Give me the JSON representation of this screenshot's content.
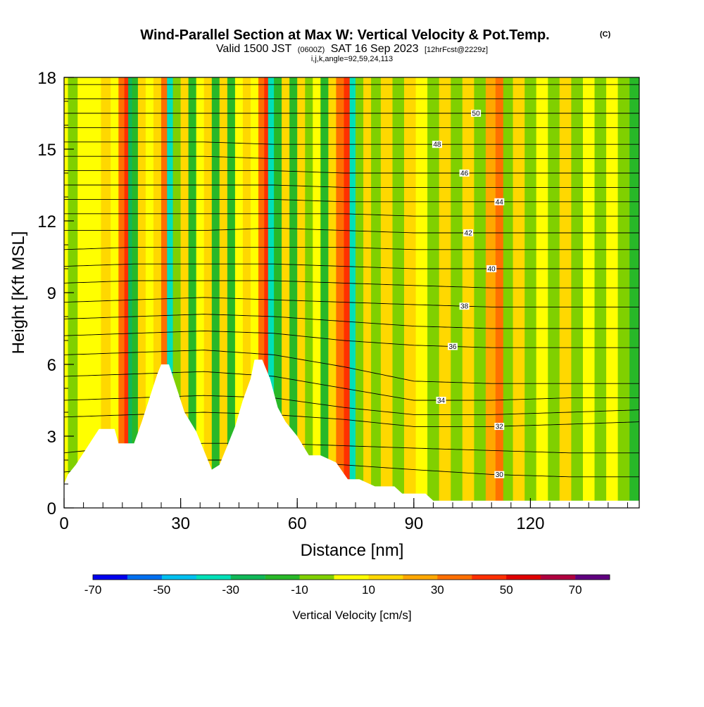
{
  "title": {
    "main": "Wind-Parallel Section at Max W: Vertical Velocity & Pot.Temp.",
    "corner": "(C)",
    "valid_prefix": "Valid 1500 JST",
    "valid_utc": "(0600Z)",
    "valid_date": "SAT 16 Sep 2023",
    "forecast": "[12hrFcst@2229z]",
    "params": "i,j,k,angle=92,59,24,113"
  },
  "chart_data": {
    "type": "heatmap",
    "xlabel": "Distance [nm]",
    "ylabel": "Height [Kft MSL]",
    "xlim": [
      0,
      148
    ],
    "ylim": [
      0,
      18
    ],
    "x_ticks": [
      0,
      30,
      60,
      90,
      120
    ],
    "y_ticks": [
      0,
      3,
      6,
      9,
      12,
      15,
      18
    ],
    "colorbar": {
      "label": "Vertical Velocity [cm/s]",
      "range": [
        -70,
        80
      ],
      "tick_values": [
        -70,
        -50,
        -30,
        -10,
        10,
        30,
        50,
        70
      ],
      "colors": [
        "#0000ee",
        "#0070f0",
        "#00c0f0",
        "#00e0b8",
        "#10b858",
        "#28b828",
        "#80d000",
        "#ffff00",
        "#ffd800",
        "#ffa800",
        "#ff7000",
        "#ff3000",
        "#e00000",
        "#b00040",
        "#600080"
      ]
    },
    "velocity_columns": [
      {
        "x": 0,
        "v": 5
      },
      {
        "x": 2,
        "v": -10
      },
      {
        "x": 5,
        "v": 5
      },
      {
        "x": 8,
        "v": 0
      },
      {
        "x": 11,
        "v": 15
      },
      {
        "x": 13,
        "v": 5
      },
      {
        "x": 15,
        "v": 35
      },
      {
        "x": 16,
        "v": 45
      },
      {
        "x": 17,
        "v": -30
      },
      {
        "x": 18,
        "v": -15
      },
      {
        "x": 20,
        "v": 10
      },
      {
        "x": 22,
        "v": 0
      },
      {
        "x": 24,
        "v": 15
      },
      {
        "x": 26,
        "v": 30
      },
      {
        "x": 27,
        "v": -35
      },
      {
        "x": 29,
        "v": -10
      },
      {
        "x": 31,
        "v": 10
      },
      {
        "x": 33,
        "v": -20
      },
      {
        "x": 35,
        "v": 5
      },
      {
        "x": 37,
        "v": 15
      },
      {
        "x": 39,
        "v": -15
      },
      {
        "x": 41,
        "v": 10
      },
      {
        "x": 43,
        "v": -15
      },
      {
        "x": 45,
        "v": 0
      },
      {
        "x": 47,
        "v": 15
      },
      {
        "x": 49,
        "v": 0
      },
      {
        "x": 51,
        "v": 30
      },
      {
        "x": 52,
        "v": 45
      },
      {
        "x": 53,
        "v": -40
      },
      {
        "x": 55,
        "v": -15
      },
      {
        "x": 57,
        "v": 10
      },
      {
        "x": 59,
        "v": -15
      },
      {
        "x": 61,
        "v": 10
      },
      {
        "x": 63,
        "v": -10
      },
      {
        "x": 65,
        "v": 5
      },
      {
        "x": 67,
        "v": -20
      },
      {
        "x": 69,
        "v": 15
      },
      {
        "x": 71,
        "v": 35
      },
      {
        "x": 73,
        "v": 40
      },
      {
        "x": 74,
        "v": -35
      },
      {
        "x": 76,
        "v": -10
      },
      {
        "x": 78,
        "v": 10
      },
      {
        "x": 80,
        "v": -5
      },
      {
        "x": 83,
        "v": 10
      },
      {
        "x": 86,
        "v": -5
      },
      {
        "x": 89,
        "v": 15
      },
      {
        "x": 92,
        "v": 0
      },
      {
        "x": 95,
        "v": -10
      },
      {
        "x": 98,
        "v": 10
      },
      {
        "x": 101,
        "v": -5
      },
      {
        "x": 104,
        "v": 10
      },
      {
        "x": 107,
        "v": -10
      },
      {
        "x": 110,
        "v": 20
      },
      {
        "x": 112,
        "v": 35
      },
      {
        "x": 114,
        "v": -5
      },
      {
        "x": 117,
        "v": 10
      },
      {
        "x": 120,
        "v": -10
      },
      {
        "x": 123,
        "v": 5
      },
      {
        "x": 126,
        "v": -5
      },
      {
        "x": 129,
        "v": 10
      },
      {
        "x": 132,
        "v": -10
      },
      {
        "x": 135,
        "v": 5
      },
      {
        "x": 138,
        "v": -5
      },
      {
        "x": 141,
        "v": 5
      },
      {
        "x": 144,
        "v": -10
      },
      {
        "x": 147,
        "v": -15
      }
    ],
    "terrain": [
      {
        "x": 0,
        "h": 1.0
      },
      {
        "x": 1,
        "h": 1.4
      },
      {
        "x": 3,
        "h": 1.8
      },
      {
        "x": 5,
        "h": 2.3
      },
      {
        "x": 7,
        "h": 2.8
      },
      {
        "x": 9,
        "h": 3.3
      },
      {
        "x": 13,
        "h": 3.3
      },
      {
        "x": 14,
        "h": 2.7
      },
      {
        "x": 18,
        "h": 2.7
      },
      {
        "x": 20,
        "h": 3.6
      },
      {
        "x": 22,
        "h": 4.6
      },
      {
        "x": 24,
        "h": 5.6
      },
      {
        "x": 25,
        "h": 6.0
      },
      {
        "x": 27,
        "h": 6.0
      },
      {
        "x": 29,
        "h": 5.0
      },
      {
        "x": 31,
        "h": 4.0
      },
      {
        "x": 34,
        "h": 3.2
      },
      {
        "x": 36,
        "h": 2.4
      },
      {
        "x": 38,
        "h": 1.6
      },
      {
        "x": 40,
        "h": 1.8
      },
      {
        "x": 42,
        "h": 2.6
      },
      {
        "x": 44,
        "h": 3.4
      },
      {
        "x": 46,
        "h": 4.5
      },
      {
        "x": 48,
        "h": 5.4
      },
      {
        "x": 49,
        "h": 6.2
      },
      {
        "x": 51,
        "h": 6.2
      },
      {
        "x": 53,
        "h": 5.4
      },
      {
        "x": 55,
        "h": 4.2
      },
      {
        "x": 57,
        "h": 3.6
      },
      {
        "x": 60,
        "h": 3.0
      },
      {
        "x": 63,
        "h": 2.2
      },
      {
        "x": 66,
        "h": 2.2
      },
      {
        "x": 70,
        "h": 1.9
      },
      {
        "x": 73,
        "h": 1.2
      },
      {
        "x": 76,
        "h": 1.2
      },
      {
        "x": 80,
        "h": 0.9
      },
      {
        "x": 85,
        "h": 0.9
      },
      {
        "x": 87,
        "h": 0.6
      },
      {
        "x": 93,
        "h": 0.6
      },
      {
        "x": 95,
        "h": 0.3
      },
      {
        "x": 148,
        "h": 0.3
      }
    ],
    "isentropes": [
      {
        "value": 30,
        "label": "30",
        "levels": [
          1.5,
          1.8,
          2.0,
          2.0,
          1.8,
          1.6,
          1.4,
          1.3,
          1.3
        ],
        "label_x": 112
      },
      {
        "value": 31,
        "label": "",
        "levels": [
          2.3,
          2.6,
          2.7,
          2.7,
          2.6,
          2.5,
          2.4,
          2.3,
          2.3
        ]
      },
      {
        "value": 32,
        "label": "32",
        "levels": [
          3.8,
          3.9,
          4.0,
          3.9,
          3.7,
          3.4,
          3.4,
          3.5,
          3.6
        ],
        "label_x": 112
      },
      {
        "value": 33,
        "label": "",
        "levels": [
          4.5,
          4.6,
          4.7,
          4.6,
          4.2,
          3.9,
          3.9,
          4.0,
          4.1
        ]
      },
      {
        "value": 34,
        "label": "34",
        "levels": [
          5.5,
          5.6,
          5.7,
          5.5,
          5.0,
          4.5,
          4.5,
          4.6,
          4.6
        ],
        "label_x": 97
      },
      {
        "value": 35,
        "label": "",
        "levels": [
          6.4,
          6.5,
          6.6,
          6.4,
          5.9,
          5.3,
          5.2,
          5.2,
          5.2
        ]
      },
      {
        "value": 36,
        "label": "36",
        "levels": [
          7.2,
          7.3,
          7.4,
          7.3,
          7.0,
          6.8,
          6.7,
          6.7,
          6.7
        ],
        "label_x": 100
      },
      {
        "value": 37,
        "label": "",
        "levels": [
          7.9,
          8.0,
          8.1,
          8.0,
          7.8,
          7.6,
          7.5,
          7.5,
          7.5
        ]
      },
      {
        "value": 38,
        "label": "38",
        "levels": [
          8.6,
          8.7,
          8.8,
          8.7,
          8.6,
          8.5,
          8.4,
          8.4,
          8.4
        ],
        "label_x": 103
      },
      {
        "value": 39,
        "label": "",
        "levels": [
          9.4,
          9.5,
          9.5,
          9.5,
          9.4,
          9.3,
          9.2,
          9.2,
          9.2
        ]
      },
      {
        "value": 40,
        "label": "40",
        "levels": [
          10.1,
          10.2,
          10.2,
          10.2,
          10.1,
          10.0,
          10.0,
          10.0,
          10.0
        ],
        "label_x": 110
      },
      {
        "value": 41,
        "label": "",
        "levels": [
          10.8,
          10.9,
          10.9,
          10.9,
          10.9,
          10.8,
          10.8,
          10.8,
          10.8
        ]
      },
      {
        "value": 42,
        "label": "42",
        "levels": [
          11.6,
          11.6,
          11.6,
          11.7,
          11.6,
          11.5,
          11.5,
          11.5,
          11.5
        ],
        "label_x": 104
      },
      {
        "value": 43,
        "label": "",
        "levels": [
          12.3,
          12.3,
          12.3,
          12.3,
          12.3,
          12.2,
          12.2,
          12.2,
          12.2
        ]
      },
      {
        "value": 44,
        "label": "44",
        "levels": [
          12.9,
          12.9,
          12.9,
          12.9,
          12.8,
          12.8,
          12.8,
          12.8,
          12.8
        ],
        "label_x": 112
      },
      {
        "value": 45,
        "label": "",
        "levels": [
          13.5,
          13.5,
          13.5,
          13.5,
          13.4,
          13.4,
          13.4,
          13.4,
          13.4
        ]
      },
      {
        "value": 46,
        "label": "46",
        "levels": [
          14.1,
          14.1,
          14.1,
          14.1,
          14.0,
          14.0,
          14.0,
          14.0,
          14.0
        ],
        "label_x": 103
      },
      {
        "value": 47,
        "label": "",
        "levels": [
          14.7,
          14.7,
          14.7,
          14.6,
          14.6,
          14.6,
          14.6,
          14.6,
          14.6
        ]
      },
      {
        "value": 48,
        "label": "48",
        "levels": [
          15.3,
          15.3,
          15.3,
          15.2,
          15.2,
          15.2,
          15.2,
          15.2,
          15.2
        ],
        "label_x": 96
      },
      {
        "value": 49,
        "label": "",
        "levels": [
          15.9,
          15.9,
          15.9,
          15.9,
          15.9,
          15.9,
          15.9,
          15.9,
          15.9
        ]
      },
      {
        "value": 50,
        "label": "50",
        "levels": [
          16.5,
          16.5,
          16.5,
          16.5,
          16.5,
          16.5,
          16.5,
          16.5,
          16.5
        ],
        "label_x": 106
      },
      {
        "value": 51,
        "label": "",
        "levels": [
          17.1,
          17.1,
          17.1,
          17.1,
          17.1,
          17.1,
          17.1,
          17.1,
          17.1
        ]
      },
      {
        "value": 52,
        "label": "",
        "levels": [
          17.7,
          17.7,
          17.7,
          17.7,
          17.7,
          17.7,
          17.7,
          17.7,
          17.7
        ]
      }
    ],
    "isentrope_x_nodes": [
      0,
      18,
      36,
      54,
      72,
      90,
      110,
      130,
      148
    ]
  }
}
